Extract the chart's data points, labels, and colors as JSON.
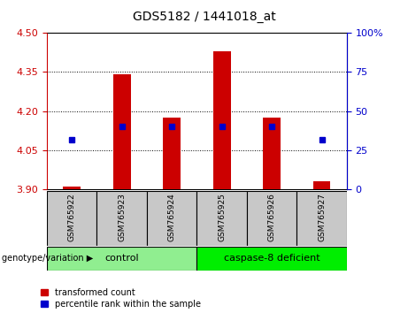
{
  "title": "GDS5182 / 1441018_at",
  "samples": [
    "GSM765922",
    "GSM765923",
    "GSM765924",
    "GSM765925",
    "GSM765926",
    "GSM765927"
  ],
  "transformed_count": [
    3.91,
    4.34,
    4.175,
    4.43,
    4.175,
    3.93
  ],
  "percentile_rank": [
    32,
    40,
    40,
    40,
    40,
    32
  ],
  "ylim_left": [
    3.9,
    4.5
  ],
  "ylim_right": [
    0,
    100
  ],
  "yticks_left": [
    3.9,
    4.05,
    4.2,
    4.35,
    4.5
  ],
  "yticks_right": [
    0,
    25,
    50,
    75,
    100
  ],
  "ytick_labels_right": [
    "0",
    "25",
    "50",
    "75",
    "100%"
  ],
  "bar_color": "#CC0000",
  "dot_color": "#0000CC",
  "bar_bottom": 3.9,
  "bar_width": 0.35,
  "control_color": "#90EE90",
  "caspase_color": "#00EE00",
  "group_label_prefix": "genotype/variation",
  "legend_items": [
    {
      "label": "transformed count",
      "color": "#CC0000"
    },
    {
      "label": "percentile rank within the sample",
      "color": "#0000CC"
    }
  ],
  "tick_color_left": "#CC0000",
  "tick_color_right": "#0000CC",
  "grid_color": "black",
  "bg_color": "#C8C8C8",
  "plot_bg_color": "white",
  "title_fontsize": 10,
  "tick_fontsize": 8,
  "label_fontsize": 7.5,
  "legend_fontsize": 7
}
